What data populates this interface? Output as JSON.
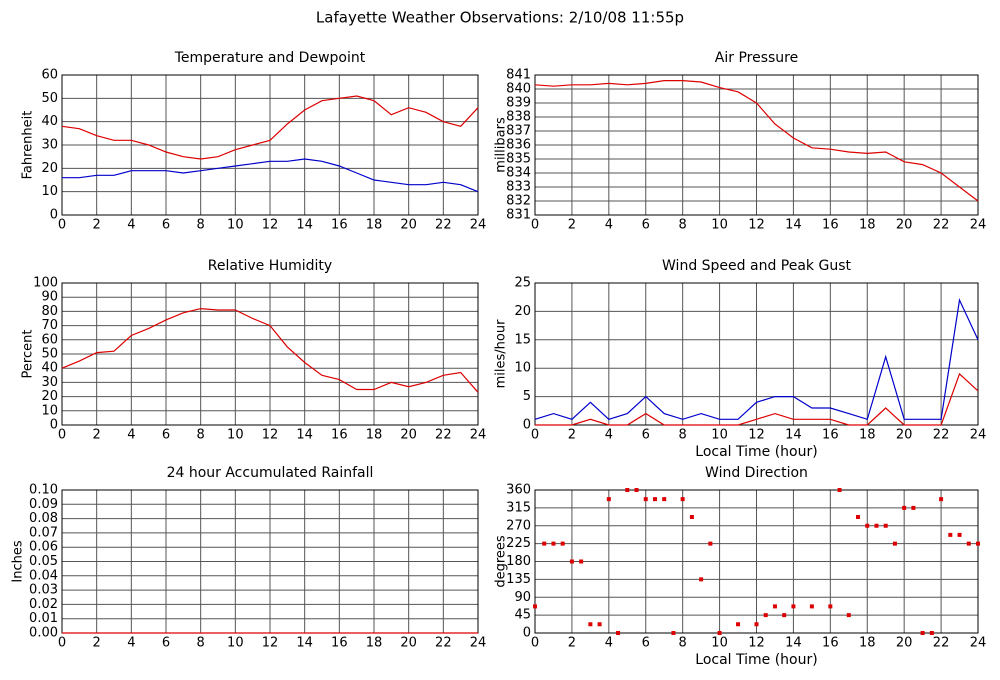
{
  "title": "Lafayette Weather Observations: 2/10/08 11:55p",
  "chart_data": [
    {
      "type": "line",
      "title": "Temperature and Dewpoint",
      "ylabel": "Fahrenheit",
      "x": [
        0,
        1,
        2,
        3,
        4,
        5,
        6,
        7,
        8,
        9,
        10,
        11,
        12,
        13,
        14,
        15,
        16,
        17,
        18,
        19,
        20,
        21,
        22,
        23,
        24
      ],
      "series": [
        {
          "name": "Temperature",
          "color": "#dd0000",
          "values": [
            38,
            37,
            34,
            32,
            32,
            30,
            27,
            25,
            24,
            25,
            28,
            30,
            32,
            39,
            45,
            49,
            50,
            51,
            49,
            43,
            46,
            44,
            40,
            38,
            46
          ]
        },
        {
          "name": "Dewpoint",
          "color": "#0000cc",
          "values": [
            16,
            16,
            17,
            17,
            19,
            19,
            19,
            18,
            19,
            20,
            21,
            22,
            23,
            23,
            24,
            23,
            21,
            18,
            15,
            14,
            13,
            13,
            14,
            13,
            10
          ]
        }
      ],
      "xlim": [
        0,
        24
      ],
      "xticks": [
        0,
        2,
        4,
        6,
        8,
        10,
        12,
        14,
        16,
        18,
        20,
        22,
        24
      ],
      "ylim": [
        0,
        60
      ],
      "yticks": [
        0,
        10,
        20,
        30,
        40,
        50,
        60
      ],
      "grid": true
    },
    {
      "type": "line",
      "title": "Air Pressure",
      "ylabel": "millibars",
      "x": [
        0,
        1,
        2,
        3,
        4,
        5,
        6,
        7,
        8,
        9,
        10,
        11,
        12,
        13,
        14,
        15,
        16,
        17,
        18,
        19,
        20,
        21,
        22,
        23,
        24
      ],
      "series": [
        {
          "name": "Pressure",
          "color": "#dd0000",
          "values": [
            840.3,
            840.2,
            840.3,
            840.3,
            840.4,
            840.3,
            840.4,
            840.6,
            840.6,
            840.5,
            840.1,
            839.8,
            839,
            837.5,
            836.5,
            835.8,
            835.7,
            835.5,
            835.4,
            835.5,
            834.8,
            834.6,
            834,
            833,
            832
          ]
        }
      ],
      "xlim": [
        0,
        24
      ],
      "xticks": [
        0,
        2,
        4,
        6,
        8,
        10,
        12,
        14,
        16,
        18,
        20,
        22,
        24
      ],
      "ylim": [
        831,
        841
      ],
      "yticks": [
        831,
        832,
        833,
        834,
        835,
        836,
        837,
        838,
        839,
        840,
        841
      ],
      "grid": true
    },
    {
      "type": "line",
      "title": "Relative Humidity",
      "ylabel": "Percent",
      "x": [
        0,
        1,
        2,
        3,
        4,
        5,
        6,
        7,
        8,
        9,
        10,
        11,
        12,
        13,
        14,
        15,
        16,
        17,
        18,
        19,
        20,
        21,
        22,
        23,
        24
      ],
      "series": [
        {
          "name": "Humidity",
          "color": "#dd0000",
          "values": [
            40,
            45,
            51,
            52,
            63,
            68,
            74,
            79,
            82,
            81,
            81,
            75,
            70,
            55,
            44,
            35,
            32,
            25,
            25,
            30,
            27,
            30,
            35,
            37,
            23
          ]
        }
      ],
      "xlim": [
        0,
        24
      ],
      "xticks": [
        0,
        2,
        4,
        6,
        8,
        10,
        12,
        14,
        16,
        18,
        20,
        22,
        24
      ],
      "ylim": [
        0,
        100
      ],
      "yticks": [
        0,
        10,
        20,
        30,
        40,
        50,
        60,
        70,
        80,
        90,
        100
      ],
      "grid": true
    },
    {
      "type": "line",
      "title": "Wind Speed and Peak Gust",
      "ylabel": "miles/hour",
      "xlabel": "Local Time (hour)",
      "x": [
        0,
        1,
        2,
        3,
        4,
        5,
        6,
        7,
        8,
        9,
        10,
        11,
        12,
        13,
        14,
        15,
        16,
        17,
        18,
        19,
        20,
        21,
        22,
        23,
        24
      ],
      "series": [
        {
          "name": "Peak Gust",
          "color": "#0000cc",
          "values": [
            1,
            2,
            1,
            4,
            1,
            2,
            5,
            2,
            1,
            2,
            1,
            1,
            4,
            5,
            5,
            3,
            3,
            2,
            1,
            12,
            1,
            1,
            1,
            22,
            15
          ]
        },
        {
          "name": "Wind Speed",
          "color": "#dd0000",
          "values": [
            0,
            0,
            0,
            1,
            0,
            0,
            2,
            0,
            0,
            0,
            0,
            0,
            1,
            2,
            1,
            1,
            1,
            0,
            0,
            3,
            0,
            0,
            0,
            9,
            6
          ]
        }
      ],
      "xlim": [
        0,
        24
      ],
      "xticks": [
        0,
        2,
        4,
        6,
        8,
        10,
        12,
        14,
        16,
        18,
        20,
        22,
        24
      ],
      "ylim": [
        0,
        25
      ],
      "yticks": [
        0,
        5,
        10,
        15,
        20,
        25
      ],
      "grid": true
    },
    {
      "type": "line",
      "title": "24 hour Accumulated Rainfall",
      "ylabel": "Inches",
      "x": [
        0,
        1,
        2,
        3,
        4,
        5,
        6,
        7,
        8,
        9,
        10,
        11,
        12,
        13,
        14,
        15,
        16,
        17,
        18,
        19,
        20,
        21,
        22,
        23,
        24
      ],
      "series": [
        {
          "name": "Rainfall",
          "color": "#dd0000",
          "values": [
            0,
            0,
            0,
            0,
            0,
            0,
            0,
            0,
            0,
            0,
            0,
            0,
            0,
            0,
            0,
            0,
            0,
            0,
            0,
            0,
            0,
            0,
            0,
            0,
            0
          ]
        }
      ],
      "xlim": [
        0,
        24
      ],
      "xticks": [
        0,
        2,
        4,
        6,
        8,
        10,
        12,
        14,
        16,
        18,
        20,
        22,
        24
      ],
      "ylim": [
        0,
        0.1
      ],
      "yticks": [
        {
          "value": 0,
          "label": "0.00"
        },
        {
          "value": 0.01,
          "label": "0.01"
        },
        {
          "value": 0.02,
          "label": "0.02"
        },
        {
          "value": 0.03,
          "label": "0.03"
        },
        {
          "value": 0.04,
          "label": "0.04"
        },
        {
          "value": 0.05,
          "label": "0.05"
        },
        {
          "value": 0.06,
          "label": "0.06"
        },
        {
          "value": 0.07,
          "label": "0.07"
        },
        {
          "value": 0.08,
          "label": "0.08"
        },
        {
          "value": 0.09,
          "label": "0.09"
        },
        {
          "value": 0.1,
          "label": "0.10"
        }
      ],
      "grid": true
    },
    {
      "type": "scatter",
      "title": "Wind Direction",
      "ylabel": "degrees",
      "xlabel": "Local Time (hour)",
      "x": [
        0,
        0.5,
        1,
        1.5,
        2,
        2.5,
        3,
        3.5,
        4,
        4.5,
        5,
        5.5,
        6,
        6.5,
        7,
        7.5,
        8,
        8.5,
        9,
        9.5,
        10,
        11,
        12,
        12.5,
        13,
        13.5,
        14,
        15,
        16,
        16.5,
        17,
        17.5,
        18,
        18.5,
        19,
        19.5,
        20,
        20.5,
        21,
        21.5,
        22,
        22.5,
        23,
        23.5,
        24
      ],
      "series": [
        {
          "name": "Direction",
          "color": "#dd0000",
          "values": [
            67,
            225,
            225,
            225,
            180,
            180,
            22,
            22,
            337,
            0,
            360,
            360,
            337,
            337,
            337,
            0,
            337,
            292,
            135,
            225,
            0,
            22,
            22,
            45,
            67,
            45,
            67,
            67,
            67,
            360,
            45,
            292,
            270,
            270,
            270,
            225,
            315,
            315,
            0,
            0,
            337,
            247,
            247,
            225,
            225
          ]
        }
      ],
      "xlim": [
        0,
        24
      ],
      "xticks": [
        0,
        2,
        4,
        6,
        8,
        10,
        12,
        14,
        16,
        18,
        20,
        22,
        24
      ],
      "ylim": [
        0,
        360
      ],
      "yticks": [
        0,
        45,
        90,
        135,
        180,
        225,
        270,
        315,
        360
      ],
      "grid": true
    }
  ]
}
